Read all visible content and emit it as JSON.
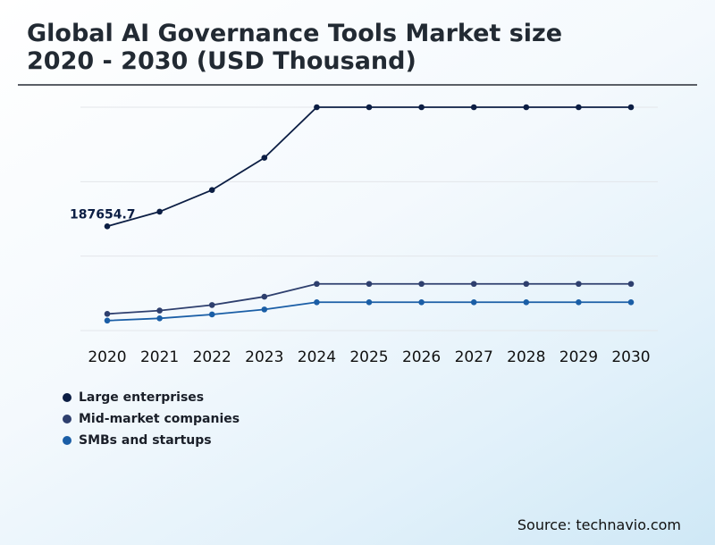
{
  "title": {
    "line1": "Global AI Governance Tools Market size",
    "line2": "2020 - 2030 (USD Thousand)"
  },
  "source": "Source: technavio.com",
  "colors": {
    "large": "#0c1e44",
    "mid": "#2e3f6e",
    "smb": "#1a5ea6",
    "grid": "#e3e6ea"
  },
  "chart_data": {
    "type": "line",
    "title": "Global AI Governance Tools Market size 2020 - 2030 (USD Thousand)",
    "categories": [
      "2020",
      "2021",
      "2022",
      "2023",
      "2024",
      "2025",
      "2026",
      "2027",
      "2028",
      "2029",
      "2030"
    ],
    "series": [
      {
        "name": "Large enterprises",
        "values": [
          187654.7,
          214000,
          253000,
          311000,
          402000,
          402000,
          402000,
          402000,
          402000,
          402000,
          402000
        ]
      },
      {
        "name": "Mid-market companies",
        "values": [
          30000,
          36000,
          46000,
          61000,
          84000,
          84000,
          84000,
          84000,
          84000,
          84000,
          84000
        ]
      },
      {
        "name": "SMBs and startups",
        "values": [
          18000,
          22000,
          29000,
          38000,
          51000,
          51000,
          51000,
          51000,
          51000,
          51000,
          51000
        ]
      }
    ],
    "annotations": [
      {
        "series": 0,
        "index": 0,
        "text": "187654.7"
      }
    ],
    "ylim": [
      0,
      402000
    ],
    "xlabel": "",
    "ylabel": "",
    "grid": true,
    "legend": "bottom-left"
  }
}
